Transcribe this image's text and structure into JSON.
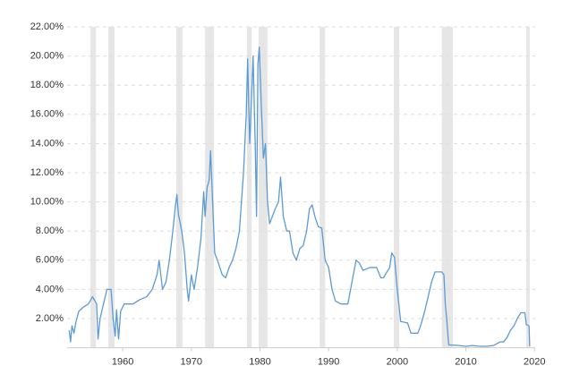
{
  "chart_data": {
    "type": "line",
    "color": "#5b9bd5",
    "shade_color": "#e6e6e6",
    "grid": true,
    "xlim": [
      1951.9,
      2020.1
    ],
    "ylim": [
      0,
      22
    ],
    "xticks": [
      1960,
      1970,
      1980,
      1990,
      2000,
      2010,
      2020
    ],
    "yticks": [
      {
        "value": 2,
        "label": "2.00%"
      },
      {
        "value": 4,
        "label": "4.00%"
      },
      {
        "value": 6,
        "label": "6.00%"
      },
      {
        "value": 8,
        "label": "8.00%"
      },
      {
        "value": 10,
        "label": "10.00%"
      },
      {
        "value": 12,
        "label": "12.00%"
      },
      {
        "value": 14,
        "label": "14.00%"
      },
      {
        "value": 16,
        "label": "16.00%"
      },
      {
        "value": 18,
        "label": "18.00%"
      },
      {
        "value": 20,
        "label": "20.00%"
      },
      {
        "value": 22,
        "label": "22.00%"
      }
    ],
    "shaded_ranges": [
      [
        1955.3,
        1956.1
      ],
      [
        1957.9,
        1958.8
      ],
      [
        1967.8,
        1968.7
      ],
      [
        1972.0,
        1973.3
      ],
      [
        1978.1,
        1978.8
      ],
      [
        1979.8,
        1981.1
      ],
      [
        1988.7,
        1989.5
      ],
      [
        1999.5,
        2000.3
      ],
      [
        2006.5,
        2008.1
      ],
      [
        2018.8,
        2019.3
      ]
    ],
    "x": [
      1952.2,
      1952.4,
      1952.6,
      1952.9,
      1953.2,
      1953.6,
      1954.3,
      1955.0,
      1955.6,
      1956.2,
      1956.4,
      1956.7,
      1957.2,
      1957.7,
      1958.3,
      1958.6,
      1958.9,
      1959.1,
      1959.4,
      1959.7,
      1960.2,
      1961.5,
      1962.5,
      1963.5,
      1964.3,
      1965.0,
      1965.3,
      1965.8,
      1966.3,
      1966.8,
      1967.3,
      1967.7,
      1967.9,
      1968.1,
      1968.6,
      1969.0,
      1969.4,
      1969.6,
      1970.0,
      1970.4,
      1970.9,
      1971.4,
      1971.8,
      1972.0,
      1972.3,
      1972.6,
      1972.8,
      1973.1,
      1973.4,
      1973.8,
      1974.5,
      1975.0,
      1975.5,
      1976.0,
      1976.5,
      1977.0,
      1977.3,
      1977.6,
      1978.0,
      1978.2,
      1978.5,
      1978.8,
      1979.0,
      1979.3,
      1979.5,
      1979.7,
      1979.9,
      1980.2,
      1980.5,
      1980.8,
      1981.1,
      1981.4,
      1981.8,
      1982.2,
      1982.7,
      1983.0,
      1983.4,
      1983.9,
      1984.3,
      1984.8,
      1985.3,
      1985.8,
      1986.3,
      1986.8,
      1987.2,
      1987.6,
      1988.0,
      1988.5,
      1989.0,
      1989.5,
      1990.0,
      1990.5,
      1991.0,
      1991.8,
      1992.8,
      1993.4,
      1994.0,
      1994.5,
      1995.0,
      1996.0,
      1997.0,
      1997.6,
      1998.0,
      1998.5,
      1998.9,
      1999.2,
      1999.6,
      2000.0,
      2000.5,
      2001.5,
      2002.0,
      2003.0,
      2003.4,
      2004.0,
      2004.5,
      2005.0,
      2005.5,
      2006.5,
      2006.8,
      2007.0,
      2007.2,
      2007.5,
      2009,
      2010,
      2011,
      2012,
      2013,
      2014,
      2015.0,
      2015.5,
      2016.0,
      2016.5,
      2017.0,
      2017.5,
      2018.0,
      2018.6,
      2018.8,
      2019.2,
      2019.3
    ],
    "values": [
      1.2,
      0.4,
      1.5,
      1.0,
      1.8,
      2.5,
      2.8,
      3.0,
      3.5,
      3.0,
      0.6,
      2.0,
      3.0,
      4.0,
      4.0,
      2.0,
      0.8,
      2.6,
      0.6,
      2.5,
      3.0,
      3.0,
      3.3,
      3.5,
      4.0,
      5.0,
      6.0,
      4.0,
      4.5,
      6.0,
      8.0,
      9.8,
      10.5,
      9.2,
      8.0,
      6.5,
      4.0,
      3.2,
      5.0,
      4.0,
      5.5,
      7.5,
      10.7,
      9.0,
      11.0,
      11.5,
      13.5,
      10.0,
      6.5,
      6.0,
      5.0,
      4.8,
      5.5,
      6.0,
      6.8,
      8.0,
      10.0,
      12.0,
      16.0,
      19.8,
      14.0,
      17.5,
      20.0,
      14.0,
      9.0,
      19.5,
      20.6,
      16.5,
      13.0,
      14.0,
      10.0,
      8.5,
      9.0,
      9.5,
      10.0,
      11.7,
      9.0,
      8.0,
      8.0,
      6.5,
      6.0,
      6.8,
      7.0,
      8.0,
      9.5,
      9.8,
      9.0,
      8.3,
      8.2,
      6.0,
      5.5,
      4.0,
      3.2,
      3.0,
      3.0,
      4.5,
      6.0,
      5.8,
      5.3,
      5.5,
      5.5,
      4.8,
      4.8,
      5.2,
      5.5,
      6.5,
      6.2,
      4.0,
      1.8,
      1.7,
      1.0,
      1.0,
      1.5,
      2.5,
      3.5,
      4.5,
      5.2,
      5.2,
      5.0,
      3.0,
      2.0,
      0.2,
      0.15,
      0.1,
      0.15,
      0.1,
      0.1,
      0.15,
      0.4,
      0.4,
      0.7,
      1.2,
      1.5,
      2.0,
      2.4,
      2.4,
      1.6,
      1.5,
      0.1
    ]
  }
}
